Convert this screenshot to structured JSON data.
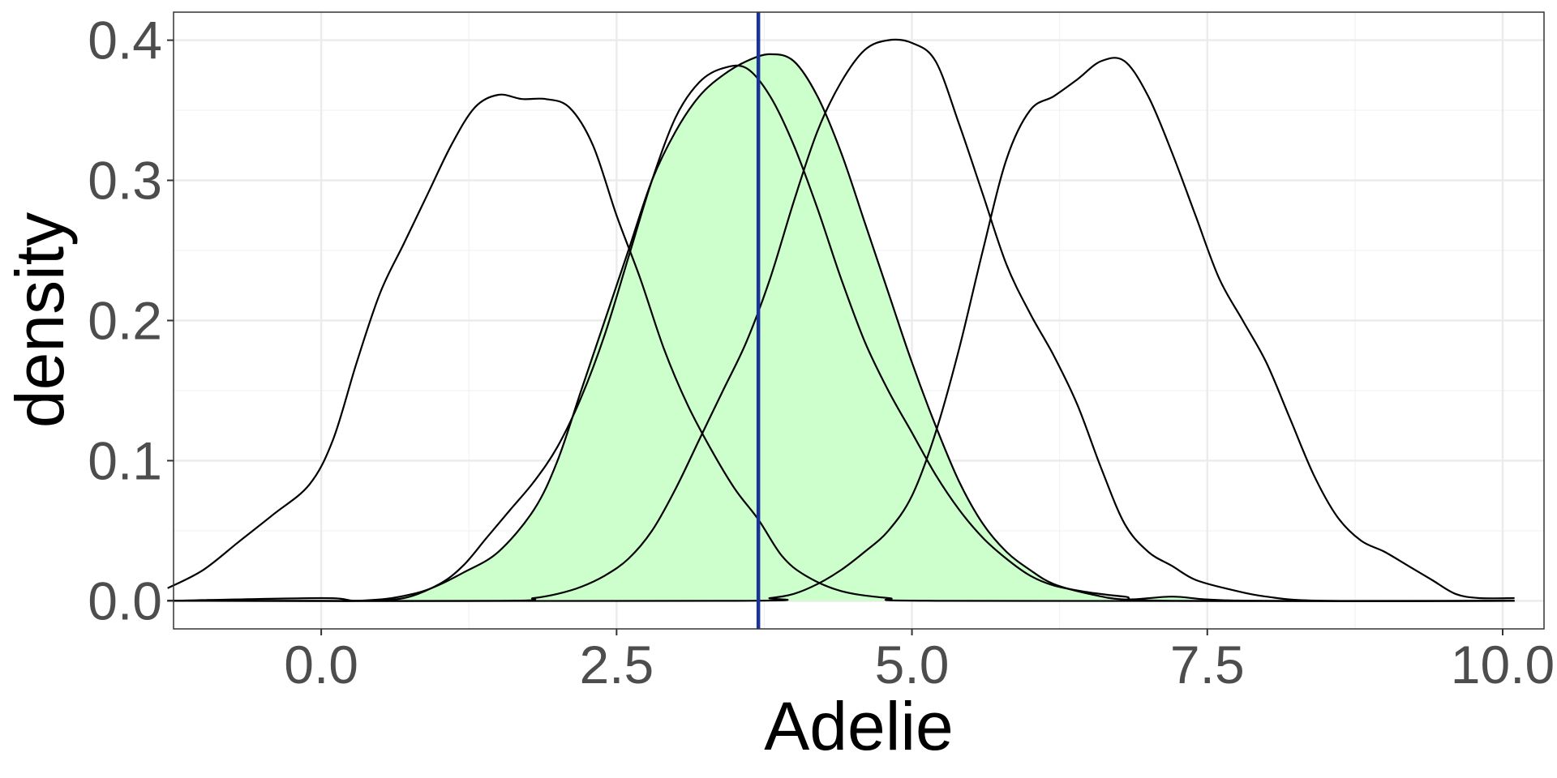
{
  "chart_data": {
    "type": "area",
    "xlabel": "Adelie",
    "ylabel": "density",
    "xlim": [
      -1.25,
      10.35
    ],
    "ylim": [
      -0.02,
      0.42
    ],
    "x_ticks": [
      0.0,
      2.5,
      5.0,
      7.5,
      10.0
    ],
    "x_tick_labels": [
      "0.0",
      "2.5",
      "5.0",
      "7.5",
      "10.0"
    ],
    "y_ticks": [
      0.0,
      0.1,
      0.2,
      0.3,
      0.4
    ],
    "y_tick_labels": [
      "0.0",
      "0.1",
      "0.2",
      "0.3",
      "0.4"
    ],
    "grid": true,
    "vline": {
      "x": 3.7,
      "color": "#1a3399"
    },
    "fill_color": "#ccffcc",
    "line_color": "#000000",
    "series": [
      {
        "fill": false,
        "points": [
          [
            -1.3,
            0.009
          ],
          [
            -1.0,
            0.022
          ],
          [
            -0.7,
            0.042
          ],
          [
            -0.4,
            0.062
          ],
          [
            -0.1,
            0.083
          ],
          [
            0.1,
            0.115
          ],
          [
            0.3,
            0.17
          ],
          [
            0.5,
            0.22
          ],
          [
            0.7,
            0.255
          ],
          [
            0.9,
            0.29
          ],
          [
            1.1,
            0.325
          ],
          [
            1.3,
            0.352
          ],
          [
            1.5,
            0.361
          ],
          [
            1.7,
            0.358
          ],
          [
            1.9,
            0.358
          ],
          [
            2.1,
            0.352
          ],
          [
            2.3,
            0.325
          ],
          [
            2.5,
            0.275
          ],
          [
            2.7,
            0.23
          ],
          [
            2.9,
            0.18
          ],
          [
            3.1,
            0.14
          ],
          [
            3.3,
            0.108
          ],
          [
            3.5,
            0.08
          ],
          [
            3.7,
            0.058
          ],
          [
            3.9,
            0.032
          ],
          [
            4.1,
            0.018
          ],
          [
            4.4,
            0.007
          ],
          [
            4.8,
            0.002
          ],
          [
            5.3,
            0.0
          ],
          [
            10.1,
            0.0
          ]
        ]
      },
      {
        "fill": false,
        "points": [
          [
            -1.3,
            0.0
          ],
          [
            0.0,
            0.002
          ],
          [
            0.3,
            0.0
          ],
          [
            0.7,
            0.002
          ],
          [
            1.0,
            0.012
          ],
          [
            1.2,
            0.025
          ],
          [
            1.4,
            0.045
          ],
          [
            1.6,
            0.065
          ],
          [
            1.8,
            0.085
          ],
          [
            2.0,
            0.11
          ],
          [
            2.2,
            0.145
          ],
          [
            2.4,
            0.19
          ],
          [
            2.6,
            0.245
          ],
          [
            2.8,
            0.3
          ],
          [
            3.0,
            0.345
          ],
          [
            3.2,
            0.37
          ],
          [
            3.4,
            0.38
          ],
          [
            3.6,
            0.38
          ],
          [
            3.8,
            0.36
          ],
          [
            4.0,
            0.325
          ],
          [
            4.2,
            0.28
          ],
          [
            4.4,
            0.23
          ],
          [
            4.6,
            0.185
          ],
          [
            4.8,
            0.15
          ],
          [
            5.0,
            0.12
          ],
          [
            5.2,
            0.09
          ],
          [
            5.4,
            0.065
          ],
          [
            5.6,
            0.045
          ],
          [
            5.8,
            0.03
          ],
          [
            6.0,
            0.018
          ],
          [
            6.2,
            0.011
          ],
          [
            6.5,
            0.006
          ],
          [
            6.8,
            0.003
          ],
          [
            7.2,
            0.0
          ],
          [
            10.1,
            0.0
          ]
        ]
      },
      {
        "fill": true,
        "points": [
          [
            -1.3,
            0.0
          ],
          [
            0.0,
            0.0
          ],
          [
            0.3,
            0.0
          ],
          [
            0.6,
            0.002
          ],
          [
            0.9,
            0.008
          ],
          [
            1.2,
            0.02
          ],
          [
            1.5,
            0.035
          ],
          [
            1.8,
            0.065
          ],
          [
            2.0,
            0.1
          ],
          [
            2.2,
            0.15
          ],
          [
            2.4,
            0.2
          ],
          [
            2.6,
            0.25
          ],
          [
            2.8,
            0.3
          ],
          [
            3.0,
            0.335
          ],
          [
            3.2,
            0.36
          ],
          [
            3.4,
            0.375
          ],
          [
            3.6,
            0.385
          ],
          [
            3.8,
            0.39
          ],
          [
            4.0,
            0.385
          ],
          [
            4.2,
            0.36
          ],
          [
            4.4,
            0.32
          ],
          [
            4.6,
            0.27
          ],
          [
            4.8,
            0.22
          ],
          [
            5.0,
            0.17
          ],
          [
            5.2,
            0.125
          ],
          [
            5.4,
            0.085
          ],
          [
            5.6,
            0.055
          ],
          [
            5.8,
            0.035
          ],
          [
            6.0,
            0.022
          ],
          [
            6.2,
            0.012
          ],
          [
            6.5,
            0.005
          ],
          [
            6.8,
            0.001
          ],
          [
            7.2,
            0.003
          ],
          [
            7.5,
            0.001
          ],
          [
            8.0,
            0.0
          ],
          [
            10.1,
            0.0
          ]
        ]
      },
      {
        "fill": false,
        "points": [
          [
            -1.3,
            0.0
          ],
          [
            1.5,
            0.0
          ],
          [
            1.8,
            0.002
          ],
          [
            2.0,
            0.005
          ],
          [
            2.2,
            0.01
          ],
          [
            2.4,
            0.018
          ],
          [
            2.6,
            0.03
          ],
          [
            2.8,
            0.05
          ],
          [
            3.0,
            0.08
          ],
          [
            3.2,
            0.115
          ],
          [
            3.4,
            0.15
          ],
          [
            3.6,
            0.185
          ],
          [
            3.8,
            0.23
          ],
          [
            4.0,
            0.285
          ],
          [
            4.2,
            0.335
          ],
          [
            4.4,
            0.37
          ],
          [
            4.6,
            0.393
          ],
          [
            4.8,
            0.4
          ],
          [
            5.0,
            0.398
          ],
          [
            5.2,
            0.385
          ],
          [
            5.4,
            0.34
          ],
          [
            5.6,
            0.29
          ],
          [
            5.8,
            0.24
          ],
          [
            6.0,
            0.205
          ],
          [
            6.2,
            0.175
          ],
          [
            6.4,
            0.14
          ],
          [
            6.6,
            0.095
          ],
          [
            6.8,
            0.055
          ],
          [
            7.0,
            0.035
          ],
          [
            7.2,
            0.025
          ],
          [
            7.4,
            0.015
          ],
          [
            7.7,
            0.008
          ],
          [
            8.0,
            0.003
          ],
          [
            8.5,
            0.0
          ],
          [
            10.1,
            0.0
          ]
        ]
      },
      {
        "fill": false,
        "points": [
          [
            -1.3,
            0.0
          ],
          [
            3.5,
            0.0
          ],
          [
            3.8,
            0.002
          ],
          [
            4.0,
            0.005
          ],
          [
            4.2,
            0.012
          ],
          [
            4.4,
            0.022
          ],
          [
            4.6,
            0.035
          ],
          [
            4.8,
            0.05
          ],
          [
            5.0,
            0.075
          ],
          [
            5.2,
            0.12
          ],
          [
            5.4,
            0.18
          ],
          [
            5.6,
            0.25
          ],
          [
            5.8,
            0.315
          ],
          [
            6.0,
            0.35
          ],
          [
            6.2,
            0.36
          ],
          [
            6.4,
            0.372
          ],
          [
            6.6,
            0.385
          ],
          [
            6.8,
            0.385
          ],
          [
            7.0,
            0.36
          ],
          [
            7.2,
            0.32
          ],
          [
            7.4,
            0.275
          ],
          [
            7.6,
            0.23
          ],
          [
            7.8,
            0.2
          ],
          [
            8.0,
            0.17
          ],
          [
            8.2,
            0.13
          ],
          [
            8.4,
            0.09
          ],
          [
            8.6,
            0.06
          ],
          [
            8.8,
            0.043
          ],
          [
            9.0,
            0.035
          ],
          [
            9.2,
            0.025
          ],
          [
            9.4,
            0.015
          ],
          [
            9.6,
            0.005
          ],
          [
            9.8,
            0.002
          ],
          [
            10.1,
            0.002
          ]
        ]
      }
    ]
  }
}
